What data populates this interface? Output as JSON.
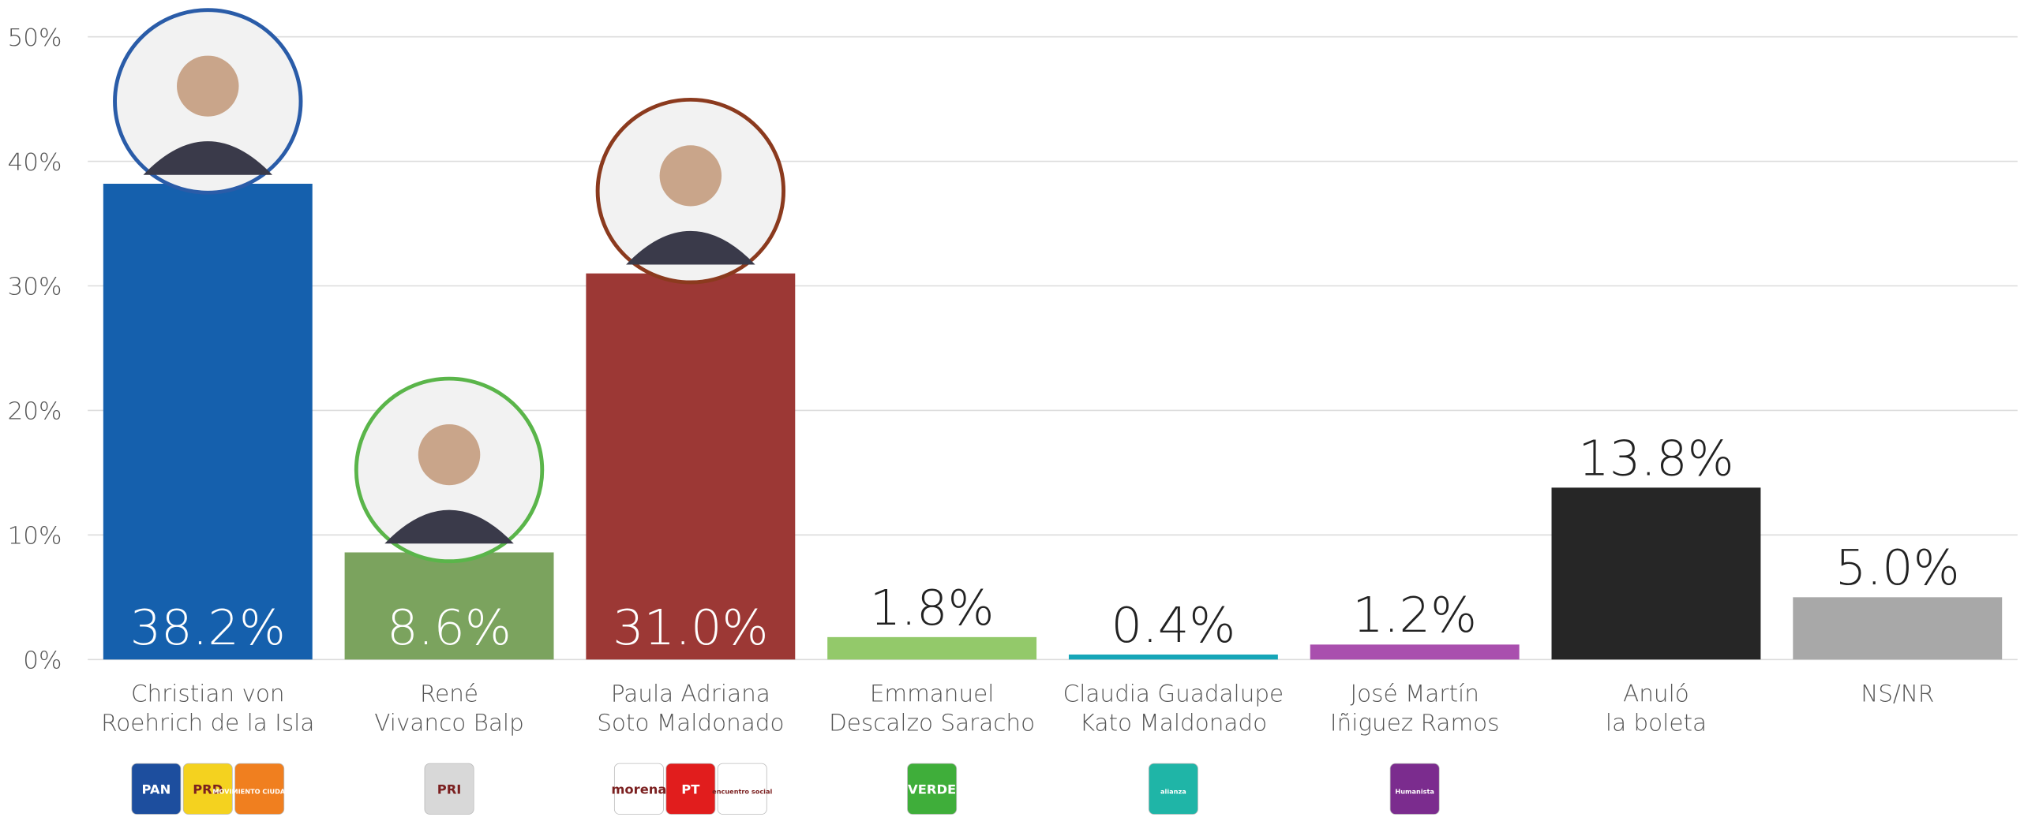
{
  "chart_data": {
    "type": "bar",
    "categories": [
      [
        "Christian von",
        "Roehrich de la Isla"
      ],
      [
        "René",
        "Vivanco Balp"
      ],
      [
        "Paula Adriana",
        "Soto Maldonado"
      ],
      [
        "Emmanuel",
        "Descalzo Saracho"
      ],
      [
        "Claudia Guadalupe",
        "Kato Maldonado"
      ],
      [
        "José Martín",
        "Iñiguez Ramos"
      ],
      [
        "Anuló",
        "la boleta"
      ],
      [
        "NS/NR"
      ]
    ],
    "values": [
      38.2,
      8.6,
      31.0,
      1.8,
      0.4,
      1.2,
      13.8,
      5.0
    ],
    "value_labels": [
      "38.2%",
      "8.6%",
      "31.0%",
      "1.8%",
      "0.4%",
      "1.2%",
      "13.8%",
      "5.0%"
    ],
    "colors": [
      "#1560ad",
      "#7ba35e",
      "#9c3835",
      "#93c96a",
      "#16a6b8",
      "#a94fae",
      "#262626",
      "#a8a8a8"
    ],
    "photo_rings": [
      "#2a5ca8",
      "#5ab54a",
      "#8b3a1e",
      null,
      null,
      null,
      null,
      null
    ],
    "logos": [
      [
        {
          "text": "PAN",
          "color": "#1d4e9e"
        },
        {
          "text": "PRD",
          "color": "#f4d21f"
        },
        {
          "text": "MOVIMIENTO CIUDADANO",
          "color": "#f07f1f"
        }
      ],
      [
        {
          "text": "PRI",
          "color": "#d8d8d8"
        }
      ],
      [
        {
          "text": "morena",
          "color": "#ffffff"
        },
        {
          "text": "PT",
          "color": "#e11d1d"
        },
        {
          "text": "encuentro social",
          "color": "#ffffff"
        }
      ],
      [
        {
          "text": "VERDE",
          "color": "#3fae3a"
        }
      ],
      [
        {
          "text": "alianza",
          "color": "#1fb5a7"
        }
      ],
      [
        {
          "text": "Humanista",
          "color": "#7b2c8e"
        }
      ],
      [],
      []
    ],
    "ylim": [
      0,
      50
    ],
    "yticks": [
      {
        "value": 0,
        "label": "0%"
      },
      {
        "value": 10,
        "label": "10%"
      },
      {
        "value": 20,
        "label": "20%"
      },
      {
        "value": 30,
        "label": "30%"
      },
      {
        "value": 40,
        "label": "40%"
      },
      {
        "value": 50,
        "label": "50%"
      }
    ],
    "grid": true
  }
}
